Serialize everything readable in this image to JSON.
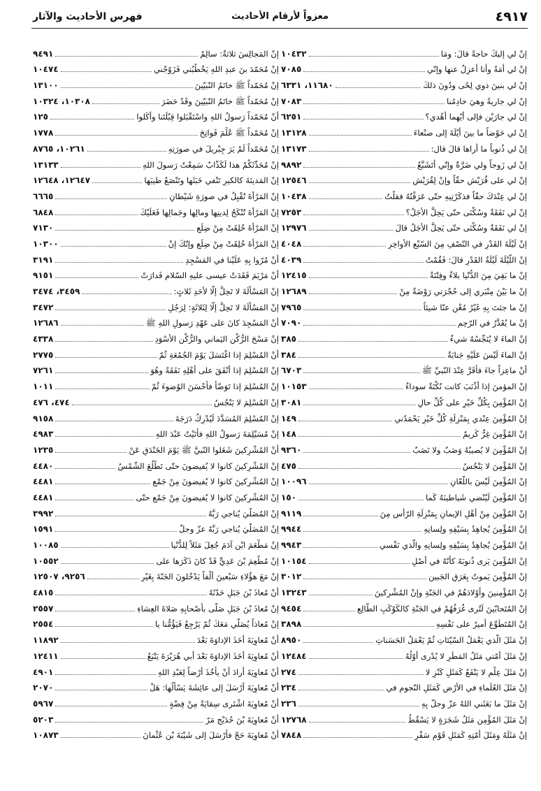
{
  "header": {
    "page_number": "٤٩١٧",
    "center_title": "معزواً لأرقام الأحاديث",
    "book_title": "فهرس الأحاديث والآثار"
  },
  "right_column": [
    {
      "text": "إنْ لي إليكَ حاجةً قالَ: ومَا",
      "ref": "١٠٤٣٢"
    },
    {
      "text": "إنْ لي أمَةً وأنا أعزِلُ عنها وإنّي",
      "ref": "٧٠٨٥"
    },
    {
      "text": "إنْ لي بنينَ ذوي لِحًى ودُونَ ذلكَ",
      "ref": "١١٦٨٠، ٦٣٣١"
    },
    {
      "text": "إنْ لي جاريةً وهيَ خادِمُنا",
      "ref": "٧٠٨٣"
    },
    {
      "text": "إنْ لي جارَيْنِ فإلى أيّهما أُهْدي؟",
      "ref": "٦٢٥١"
    },
    {
      "text": "إنْ لي حَوْضاً ما بينَ أيْلَةَ إلى صنْعاءَ",
      "ref": "١٣١٢٨"
    },
    {
      "text": "إنْ لي ذُنوباً ما أراها قالَ قال:",
      "ref": "١٣١٧٣"
    },
    {
      "text": "إنْ لي زَوجاً ولي ضَرَّةٌ وإنّي أتَشَبَّعُ",
      "ref": "٩٨٩٢"
    },
    {
      "text": "إنْ لي على قُرَيْشٍ حقّاً وإنْ لِقُرَيْشٍ",
      "ref": "١٢٥٤٦"
    },
    {
      "text": "إنْ لي عِنْدَكَ حقّاً فذكَرْتِيهِ حتّى عَرَفْتُهُ فقلْتُ",
      "ref": "١٠٤٣٨"
    },
    {
      "text": "إنْ لي نَفَقَةٌ وسُكْنَى حتّى يَحِلَّ الأجَلُ؟",
      "ref": "٧٢٥٣"
    },
    {
      "text": "إنْ لي نَفَقَةٌ وسُكْنَى حتّى يَحِلَّ الأجَلُ قالَ",
      "ref": "١٢٩٧٦"
    },
    {
      "text": "إنْ لَيْلَةَ القَدْرِ في النّصْفِ مِنَ السّبْعِ الأواخِرِ",
      "ref": "٤٠٤٨"
    },
    {
      "text": "إنْ اللّيْلَةَ لَيْلَةُ القَدْرِ قالَ: فَقُمْتُ",
      "ref": "٤٠٣٩"
    },
    {
      "text": "إنْ ما بَقِيَ مِنَ الدُّنْيا بلاءٌ وفِتْنَةٌ",
      "ref": "١٢٤١٥"
    },
    {
      "text": "إنْ ما بَيْنَ مِنْبَري إلى حُجْرَتي رَوْضَةٌ مِنْ",
      "ref": "١٢٦٨٩"
    },
    {
      "text": "إنْ ما جئتَ بِهِ غَيْرُ مُغْنٍ عنّا شيئاً",
      "ref": "٧٩٦٥"
    },
    {
      "text": "إنْ ما يُقَدَّرُ في الرّحِمِ",
      "ref": "٧٠٩٠"
    },
    {
      "text": "إنْ الماءَ لا يُنَجِّسُهُ شيءٌ",
      "ref": "٣٨٥"
    },
    {
      "text": "إنْ الماءَ لَيْسَ عَلَيْهِ جَنابَةٌ",
      "ref": "٣٨٤"
    },
    {
      "text": "أنْ ماعِزاً جاءَ فأقَرَّ عِنْدَ النّبيِّ ﷺ",
      "ref": "٦٧٠٣"
    },
    {
      "text": "إنْ المؤمنَ إذا أذْنَبَ كانت نُكْتَةٌ سوداءُ",
      "ref": "١٠١٥٣"
    },
    {
      "text": "إنْ المُؤْمِنَ بِكُلِّ خَيْرٍ على كُلِّ حالٍ",
      "ref": "٣٠٨١"
    },
    {
      "text": "إنْ المُؤْمِنَ عِنْدي بِمَنْزِلَةِ كُلِّ خَيْرٍ يَحْمَدُني",
      "ref": "١٤٩"
    },
    {
      "text": "إنْ المُؤْمِنَ غِرٌّ كَريمٌ",
      "ref": "١٤٨"
    },
    {
      "text": "إنْ المُؤْمِنَ لا يُصيبُهُ وَصَبٌ ولا نَصَبٌ",
      "ref": "٩٣٦٠"
    },
    {
      "text": "إنْ المُؤْمِنَ لا يَنْجُسُ",
      "ref": "٤٧٥"
    },
    {
      "text": "إنْ المُؤْمِنَ لَيْسَ باللّعّانِ",
      "ref": "١٠٠٩٦"
    },
    {
      "text": "إنْ المُؤْمِنَ لَيُنْضي شَياطينَهُ كَما",
      "ref": "١٥٠"
    },
    {
      "text": "إنْ المُؤْمِنَ مِنْ أهْلِ الإيمانِ بِمَنْزِلَةِ الرّأْسِ مِنَ",
      "ref": "٩١١٩"
    },
    {
      "text": "إنْ المُؤْمِنَ يُجاهِدُ بِسَيْفِهِ ولِسانِهِ",
      "ref": "٩٩٤٤"
    },
    {
      "text": "إنْ المُؤْمِنَ يُجاهِدُ بِسَيْفِهِ ولِسانِهِ والّذي نَفْسي",
      "ref": "٩٩٤٣"
    },
    {
      "text": "إنْ المُؤْمِنَ يَرى ذُنوبَهُ كأنّهُ في أصْلِ",
      "ref": "١٠١٥٤"
    },
    {
      "text": "إنْ المُؤْمِنَ يَموتُ بِعَرَقِ الجَبينِ",
      "ref": "٣٠١٢"
    },
    {
      "text": "إنْ المُؤْمِنينَ وأوْلادَهُمْ في الجَنّةِ وإنْ المُشْرِكينَ",
      "ref": "١٣٢٤٣"
    },
    {
      "text": "إنْ المُتَحابّينَ لَتُرى غُرَفُهُمْ في الجَنّةِ كالكَوْكَبِ الطّالِعِ",
      "ref": "٩٤٥٤"
    },
    {
      "text": "إنْ المُتَطَوِّعَ أميرٌ على نَفْسِهِ",
      "ref": "٣٨٩٨"
    },
    {
      "text": "إنْ مَثَلَ الّذي يَعْمَلُ السّيّئاتِ ثُمّ يَعْمَلُ الحَسَناتِ",
      "ref": "٨٩٥٠"
    },
    {
      "text": "إنْ مَثَلَ أمّتي مَثَلُ المَطَرِ لا يُدْرى أوّلُهُ",
      "ref": "١٢٤٨٤"
    },
    {
      "text": "إنْ مَثَلَ عِلْمٍ لا يَنْفَعُ كَمَثَلِ كَنْزٍ لا",
      "ref": "٢٧٤"
    },
    {
      "text": "إنْ مَثَلَ العُلَماءِ في الأرْضِ كَمَثَلِ النّجومِ في",
      "ref": "٢٣٤"
    },
    {
      "text": "إنْ مَثَلَ ما بَعَثَني اللهُ عزّ وجلّ بِهِ",
      "ref": "٢٣٦"
    },
    {
      "text": "إنْ مَثَلَ المُؤْمِنِ مَثَلُ شَجَرَةٍ لا يَسْقُطُ",
      "ref": "١٢٧٦٨"
    },
    {
      "text": "إنْ مَثَلَهُ ومَثَلَ أُمّتِهِ كَمَثَلِ قَوْمٍ سَفْرٍ",
      "ref": "٧٨٤٨"
    }
  ],
  "left_column": [
    {
      "text": "إنْ المَجالِسَ ثلاثةٌ: سالِمٌ",
      "ref": "٩٤٩١"
    },
    {
      "text": "إنْ مُحَمّدَ بنَ عبدِ اللهِ يَخْطُبُني فَزَوّجْني",
      "ref": "١٠٤٧٤"
    },
    {
      "text": "إنْ مُحَمّداً ﷺ خاتَمُ النّبيّينَ",
      "ref": "١٣١٠٠"
    },
    {
      "text": "إنْ مُحَمّداً ﷺ خاتَمُ النّبيّينَ وقَدْ حَضَرَ",
      "ref": "١٠٣٠٨، ١٠٣٢٤"
    },
    {
      "text": "أنْ مُحَمّداً رَسولُ اللهِ واسْتَقْبَلوا قِبْلَتَنا وأكَلوا",
      "ref": "١٢٥"
    },
    {
      "text": "إنْ مُحَمّداً ﷺ عُلِّمَ فَواتِحَ",
      "ref": "١٧٧٨"
    },
    {
      "text": "إنْ مُحَمّداً لَمْ يَرَ جِبْريلَ في صورَتِهِ",
      "ref": "١٠٢٦١، ٨٧٦٥"
    },
    {
      "text": "إنْ مُحَدِّثَكُمْ هذا لَكَذّابٌ سَمِعْتُ رَسولَ اللهِ",
      "ref": "١٣١٣٣"
    },
    {
      "text": "إنْ المَدينَةَ كالكيرِ تَنْفي خَبَثَها وتَنْصَعُ طيبَها",
      "ref": "١٢٦٤٧، ١٢٦٤٨"
    },
    {
      "text": "إنْ المَرْأةَ تُقْبِلُ في صورَةِ شَيْطانٍ",
      "ref": "٦٦٦٥"
    },
    {
      "text": "إنْ المَرْأةَ تُنْكَحُ لِدينِها ومالِها وجَمالِها فَعَلَيْكَ",
      "ref": "٦٨٤٨"
    },
    {
      "text": "إنْ المَرْأةَ خُلِقَتْ مِنْ ضِلَعٍ",
      "ref": "٧١٣٠"
    },
    {
      "text": "إنْ المَرْأةَ خُلِقَتْ مِنْ ضِلَعٍ وإنّكَ إنْ",
      "ref": "١٠٣٠٠"
    },
    {
      "text": "أنْ مُرّوا بِهِ عَلَيْنا في المَسْجِدِ",
      "ref": "٣١٩١"
    },
    {
      "text": "أنْ مَرْيَمَ فَقَدَتْ عيسى عليهِ السّلام فَدارَتْ",
      "ref": "٩١٥١"
    },
    {
      "text": "إنْ المَسْألَةَ لا تَحِلُّ إلّا لأحَدِ ثَلاثٍ:",
      "ref": "٣٤٥٩، ٣٤٧٤"
    },
    {
      "text": "إنْ المَسْألَةَ لا تَحِلُّ إلّا لِثَلاثَةٍ: لِرَجُلٍ",
      "ref": "٣٤٧٢"
    },
    {
      "text": "أنْ المَسْجِدَ كانَ على عَهْدِ رَسولِ اللهِ ﷺ",
      "ref": "١٢٦٨٦"
    },
    {
      "text": "إنْ مَسْحَ الرُّكْنِ اليَماني والرُّكْنِ الأسْوَدِ",
      "ref": "٤٣٣٨"
    },
    {
      "text": "أنْ المُسْلِمَ إذا اغْتَسَلَ يَوْمَ الجُمُعَةِ ثُمّ",
      "ref": "٢٧٧٥"
    },
    {
      "text": "إنْ المُسْلِمَ إذا أنْفَقَ على أهْلِهِ نَفَقَةً وهُوَ",
      "ref": "٧٢٦١"
    },
    {
      "text": "إنْ المُسْلِمَ إذا تَوَضّأَ فأحْسَنَ الوُضوءَ ثُمّ",
      "ref": "١٠١١"
    },
    {
      "text": "إنْ المُسْلِمَ لا يَنْجُسُ",
      "ref": "٤٧٤، ٤٧٦"
    },
    {
      "text": "إنْ المُسْلِمَ المُسَدَّدَ لَيُدْرِكُ دَرَجَةَ",
      "ref": "٩١٥٨"
    },
    {
      "text": "إنْ مُسَيْلِمَةَ رَسولُ اللهِ فأتَيْتُ عَبْدَ اللهِ",
      "ref": "٤٩٨٣"
    },
    {
      "text": "أنْ المُشْرِكينَ شَغَلوا النّبيَّ ﷺ يَوْمَ الخَنْدَقِ عَنْ",
      "ref": "١٢٣٥"
    },
    {
      "text": "إنْ المُشْرِكينَ كانوا لا يُفيضونَ حتّى تَطْلُعَ الشّمْسُ",
      "ref": "٤٤٨٠"
    },
    {
      "text": "إنْ المُشْرِكينَ كانوا لا يُفيضونَ مِنْ جَمْعٍ",
      "ref": "٤٤٨١"
    },
    {
      "text": "إنْ المُشْرِكينَ كانوا لا يُفيضونَ مِنْ جَمْعٍ حتّى",
      "ref": "٤٤٨١"
    },
    {
      "text": "إنْ المُصَلّيَ يُناجي رَبَّهُ",
      "ref": "٣٩٩٢"
    },
    {
      "text": "إنْ المُصَلّيَ يُناجي رَبَّهُ عزّ وجلّ",
      "ref": "١٥٩١"
    },
    {
      "text": "إنْ مَطْعَمَ ابْنِ آدَمَ جُعِلَ مَثَلاً لِلدُّنْيا",
      "ref": "١٠٠٨٥"
    },
    {
      "text": "إنْ مُطْعِمَ بْنَ عَدِيٍّ قَدْ كانَ ذَكَرَها على",
      "ref": "١٠٥٥٢"
    },
    {
      "text": "إنْ مَعَ هؤُلاءِ سَبْعينَ ألْفاً يَدْخُلونَ الجَنّةَ بِغَيْرِ",
      "ref": "٩٢٥٦، ١٢٥٠٧"
    },
    {
      "text": "أنْ مُعاذَ بْنَ جَبَلٍ حَدّثَهُ",
      "ref": "٤٨١٥"
    },
    {
      "text": "إنْ مُعاذَ بْنَ جَبَلٍ صَلّى بأصْحابِهِ صَلاةَ العِشاءِ",
      "ref": "٢٥٥٧"
    },
    {
      "text": "إنْ مُعاذاً يُصَلّي مَعَكَ ثُمّ يَرْجِعُ فَيَؤُمُّنا يا",
      "ref": "٢٥٥٤"
    },
    {
      "text": "أنْ مُعاوِيَةَ أخَذَ الإداوَةَ بَعْدَ",
      "ref": "١١٨٩٢"
    },
    {
      "text": "أنْ مُعاوِيَةَ أخَذَ الإداوَةَ بَعْدَ أبي هُرَيْرَةَ يَتْبَعُ",
      "ref": "١٢٤١١"
    },
    {
      "text": "أنْ مُعاوِيَةَ أرادَ أنْ يأخُذَ أرْضاً لِعَبْدِ اللهِ",
      "ref": "٤٩٠١"
    },
    {
      "text": "أنْ مُعاوِيَةَ أرْسَلَ إلى عائِشَةَ يَسْألُها: هَلْ",
      "ref": "٢٠٧٠"
    },
    {
      "text": "أنْ مُعاوِيَةَ اشْتَرى سِقايَةً مِنْ فِضّةٍ",
      "ref": "٥٩٦٧"
    },
    {
      "text": "أنْ مُعاوِيَةَ بْنَ حُدَيْجٍ مَرّ",
      "ref": "٥٢٠٣"
    },
    {
      "text": "أنْ مُعاوِيَةَ حَجّ فأرْسَلَ إلى شَيْبَةَ بْنِ عُثْمانَ",
      "ref": "١٠٨٧٣"
    }
  ]
}
